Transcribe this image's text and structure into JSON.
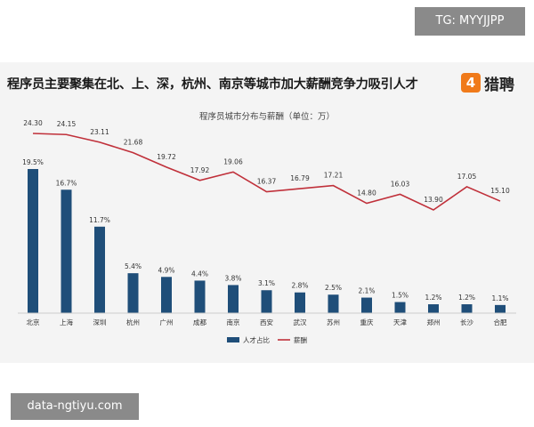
{
  "watermark_top": "TG: MYYJJPP",
  "watermark_bottom": "data-ngtiyu.com",
  "headline": "程序员主要聚集在北、上、深，杭州、南京等城市加大薪酬竞争力吸引人才",
  "logo": {
    "badge": "4",
    "text": "猎聘",
    "badge_color": "#f07a1a"
  },
  "colors": {
    "bar": "#1f4e79",
    "line": "#c0303a"
  },
  "chart_data": {
    "type": "bar+line",
    "title": "程序员城市分布与薪酬（单位：万）",
    "categories": [
      "北京",
      "上海",
      "深圳",
      "杭州",
      "广州",
      "成都",
      "南京",
      "西安",
      "武汉",
      "苏州",
      "重庆",
      "天津",
      "郑州",
      "长沙",
      "合肥"
    ],
    "series": [
      {
        "name": "人才占比",
        "type": "bar",
        "values": [
          19.5,
          16.7,
          11.7,
          5.4,
          4.9,
          4.4,
          3.8,
          3.1,
          2.8,
          2.5,
          2.1,
          1.5,
          1.2,
          1.2,
          1.1
        ],
        "labels": [
          "19.5%",
          "16.7%",
          "11.7%",
          "5.4%",
          "4.9%",
          "4.4%",
          "3.8%",
          "3.1%",
          "2.8%",
          "2.5%",
          "2.1%",
          "1.5%",
          "1.2%",
          "1.2%",
          "1.1%"
        ]
      },
      {
        "name": "薪酬",
        "type": "line",
        "values": [
          24.3,
          24.15,
          23.11,
          21.68,
          19.72,
          17.92,
          19.06,
          16.37,
          16.79,
          17.21,
          14.8,
          16.03,
          13.9,
          17.05,
          15.1
        ],
        "labels": [
          "24.30",
          "24.15",
          "23.11",
          "21.68",
          "19.72",
          "17.92",
          "19.06",
          "16.37",
          "16.79",
          "17.21",
          "14.80",
          "16.03",
          "13.90",
          "17.05",
          "15.10"
        ]
      }
    ],
    "legend": "bottom",
    "grid": false
  }
}
